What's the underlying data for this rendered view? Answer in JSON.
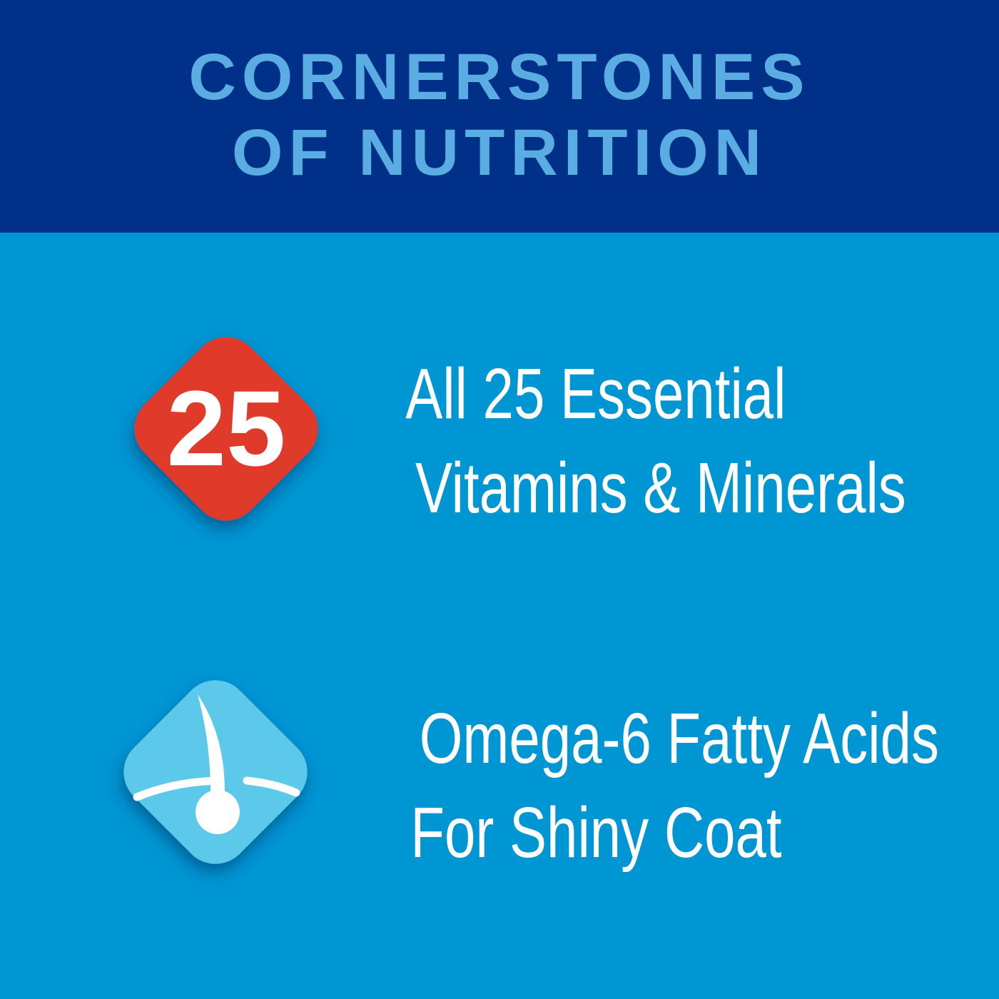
{
  "header": {
    "title_line1": "CORNERSTONES",
    "title_line2": "OF NUTRITION"
  },
  "features": [
    {
      "badge": "25",
      "icon": "number-25-badge",
      "color": "#e03b2c",
      "line1": "All 25 Essential",
      "line2": "Vitamins & Minerals"
    },
    {
      "icon": "hair-follicle-icon",
      "color": "#5bc8ea",
      "line1": "Omega-6 Fatty Acids",
      "line2": "For Shiny Coat"
    }
  ],
  "colors": {
    "header_bg": "#003087",
    "title": "#5aade3",
    "body_bg": "#0095d3"
  }
}
